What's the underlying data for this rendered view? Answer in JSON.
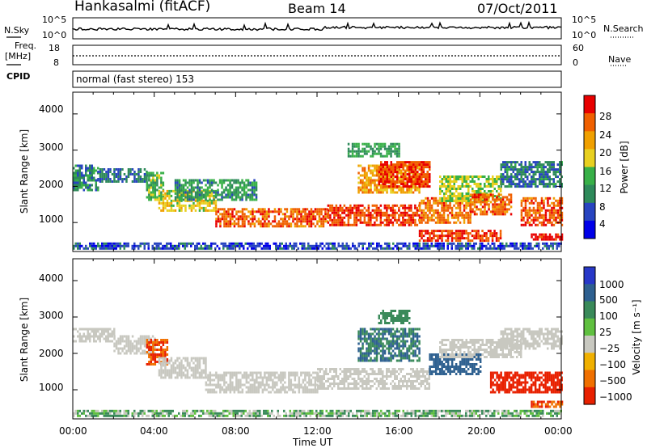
{
  "header": {
    "station": "Hankasalmi (fitACF)",
    "beam": "Beam 14",
    "date": "07/Oct/2011"
  },
  "top_panels": {
    "nsky_label": "N.Sky",
    "nsky_ticks": [
      "10^5",
      "10^0"
    ],
    "nsearch_label": "N.Search",
    "nsearch_ticks": [
      "10^5",
      "10^0"
    ],
    "freq_label": "Freq.",
    "freq_unit": "[MHz]",
    "freq_ticks": [
      "18",
      "8"
    ],
    "nave_label": "Nave",
    "nave_ticks": [
      "60",
      "0"
    ],
    "cpid_label": "CPID",
    "cpid_text": "normal (fast stereo) 153"
  },
  "colors": {
    "power_scale": [
      "#0000e8",
      "#2844c0",
      "#2e8a5a",
      "#38b048",
      "#e8d020",
      "#f0a000",
      "#f06000",
      "#e80000"
    ],
    "velocity_scale": [
      "#2838c8",
      "#2e6090",
      "#3a8a5a",
      "#60c040",
      "#c8c8c0",
      "#f0b000",
      "#f07000",
      "#e82000"
    ],
    "ground_scatter": "#c8c8c0"
  },
  "chart_data": [
    {
      "type": "heatmap",
      "ylabel": "Slant Range [km]",
      "y_ticks": [
        "4000",
        "3000",
        "2000",
        "1000"
      ],
      "ylim": [
        200,
        4600
      ],
      "x_ticks": [
        "00:00",
        "04:00",
        "08:00",
        "12:00",
        "16:00",
        "20:00",
        "00:00"
      ],
      "xlim": [
        0,
        24
      ],
      "colorbar_label": "Power",
      "colorbar_unit": "[dB]",
      "colorbar_ticks": [
        "28",
        "24",
        "20",
        "16",
        "12",
        "8",
        "4"
      ],
      "colorbar_range": [
        0,
        32
      ],
      "regions": [
        {
          "t": [
            0,
            1.2
          ],
          "r": [
            1900,
            2600
          ],
          "value": 10
        },
        {
          "t": [
            1.2,
            3.6
          ],
          "r": [
            2100,
            2500
          ],
          "value": 8
        },
        {
          "t": [
            3.6,
            4.4
          ],
          "r": [
            1600,
            2400
          ],
          "value": 14
        },
        {
          "t": [
            4.2,
            7.0
          ],
          "r": [
            1300,
            1900
          ],
          "value": 18
        },
        {
          "t": [
            5.0,
            9.0
          ],
          "r": [
            1600,
            2200
          ],
          "value": 11
        },
        {
          "t": [
            7.0,
            12.5
          ],
          "r": [
            900,
            1400
          ],
          "value": 26
        },
        {
          "t": [
            12.5,
            17.0
          ],
          "r": [
            900,
            1500
          ],
          "value": 28
        },
        {
          "t": [
            14.0,
            17.0
          ],
          "r": [
            1800,
            2600
          ],
          "value": 22
        },
        {
          "t": [
            15.0,
            17.5
          ],
          "r": [
            2000,
            2700
          ],
          "value": 28
        },
        {
          "t": [
            13.5,
            16.0
          ],
          "r": [
            2800,
            3200
          ],
          "value": 12
        },
        {
          "t": [
            17.0,
            19.5
          ],
          "r": [
            1000,
            1700
          ],
          "value": 25
        },
        {
          "t": [
            18.0,
            21.0
          ],
          "r": [
            1600,
            2300
          ],
          "value": 16
        },
        {
          "t": [
            19.5,
            21.5
          ],
          "r": [
            1200,
            1800
          ],
          "value": 26
        },
        {
          "t": [
            21.0,
            24.0
          ],
          "r": [
            2000,
            2700
          ],
          "value": 9
        },
        {
          "t": [
            22.0,
            24.0
          ],
          "r": [
            900,
            1700
          ],
          "value": 27
        },
        {
          "t": [
            17.0,
            21.0
          ],
          "r": [
            500,
            800
          ],
          "value": 28
        },
        {
          "t": [
            22.5,
            24.0
          ],
          "r": [
            500,
            700
          ],
          "value": 30
        },
        {
          "t": [
            0,
            24.0
          ],
          "r": [
            250,
            450
          ],
          "value": 6
        }
      ]
    },
    {
      "type": "heatmap",
      "ylabel": "Slant Range [km]",
      "y_ticks": [
        "4000",
        "3000",
        "2000",
        "1000"
      ],
      "ylim": [
        200,
        4600
      ],
      "x_ticks": [
        "00:00",
        "04:00",
        "08:00",
        "12:00",
        "16:00",
        "20:00",
        "00:00"
      ],
      "xlim": [
        0,
        24
      ],
      "xlabel": "Time UT",
      "colorbar_label": "Velocity",
      "colorbar_unit": "[m s⁻¹]",
      "colorbar_ticks": [
        "1000",
        "500",
        "100",
        "25",
        "−25",
        "−100",
        "−500",
        "−1000"
      ],
      "regions": [
        {
          "t": [
            0,
            2.0
          ],
          "r": [
            2300,
            2700
          ],
          "value": 0
        },
        {
          "t": [
            2.0,
            4.0
          ],
          "r": [
            2000,
            2500
          ],
          "value": 0
        },
        {
          "t": [
            3.6,
            4.6
          ],
          "r": [
            1700,
            2400
          ],
          "value": -300
        },
        {
          "t": [
            4.2,
            6.5
          ],
          "r": [
            1300,
            1900
          ],
          "value": 0
        },
        {
          "t": [
            6.5,
            12.0
          ],
          "r": [
            900,
            1500
          ],
          "value": 0
        },
        {
          "t": [
            12.0,
            17.5
          ],
          "r": [
            1000,
            1600
          ],
          "value": 0
        },
        {
          "t": [
            14.0,
            17.0
          ],
          "r": [
            1800,
            2700
          ],
          "value": 300
        },
        {
          "t": [
            15.0,
            16.5
          ],
          "r": [
            2800,
            3200
          ],
          "value": 150
        },
        {
          "t": [
            17.5,
            20.0
          ],
          "r": [
            1400,
            2000
          ],
          "value": 400
        },
        {
          "t": [
            18.0,
            22.0
          ],
          "r": [
            1900,
            2400
          ],
          "value": 0
        },
        {
          "t": [
            21.0,
            24.0
          ],
          "r": [
            2100,
            2700
          ],
          "value": 0
        },
        {
          "t": [
            20.5,
            24.0
          ],
          "r": [
            900,
            1500
          ],
          "value": -400
        },
        {
          "t": [
            22.5,
            24.0
          ],
          "r": [
            500,
            700
          ],
          "value": -300
        },
        {
          "t": [
            0,
            24.0
          ],
          "r": [
            250,
            450
          ],
          "value": 50
        }
      ]
    }
  ]
}
